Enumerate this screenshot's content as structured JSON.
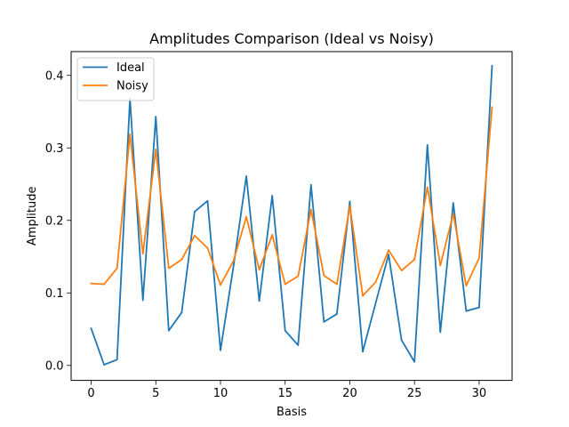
{
  "chart_data": {
    "type": "line",
    "title": "Amplitudes Comparison (Ideal vs Noisy)",
    "xlabel": "Basis",
    "ylabel": "Amplitude",
    "xlim": [
      -1.55,
      32.55
    ],
    "ylim": [
      -0.0206,
      0.4328
    ],
    "xticks": [
      0,
      5,
      10,
      15,
      20,
      25,
      30
    ],
    "yticks": [
      0.0,
      0.1,
      0.2,
      0.3,
      0.4
    ],
    "ytick_labels": [
      "0.0",
      "0.1",
      "0.2",
      "0.3",
      "0.4"
    ],
    "grid": false,
    "legend_position": "upper-left",
    "x": [
      0,
      1,
      2,
      3,
      4,
      5,
      6,
      7,
      8,
      9,
      10,
      11,
      12,
      13,
      14,
      15,
      16,
      17,
      18,
      19,
      20,
      21,
      22,
      23,
      24,
      25,
      26,
      27,
      28,
      29,
      30,
      31
    ],
    "series": [
      {
        "name": "Ideal",
        "color": "#1f77b4",
        "values": [
          0.051,
          0.001,
          0.008,
          0.368,
          0.09,
          0.343,
          0.048,
          0.073,
          0.212,
          0.227,
          0.021,
          0.136,
          0.261,
          0.089,
          0.234,
          0.048,
          0.028,
          0.249,
          0.06,
          0.071,
          0.226,
          0.019,
          0.086,
          0.153,
          0.035,
          0.005,
          0.304,
          0.046,
          0.224,
          0.075,
          0.08,
          0.413
        ]
      },
      {
        "name": "Noisy",
        "color": "#ff7f0e",
        "values": [
          0.113,
          0.112,
          0.134,
          0.319,
          0.154,
          0.298,
          0.134,
          0.146,
          0.179,
          0.162,
          0.111,
          0.144,
          0.205,
          0.132,
          0.18,
          0.112,
          0.123,
          0.215,
          0.124,
          0.112,
          0.22,
          0.096,
          0.115,
          0.159,
          0.131,
          0.146,
          0.246,
          0.138,
          0.209,
          0.11,
          0.148,
          0.356
        ]
      }
    ]
  }
}
